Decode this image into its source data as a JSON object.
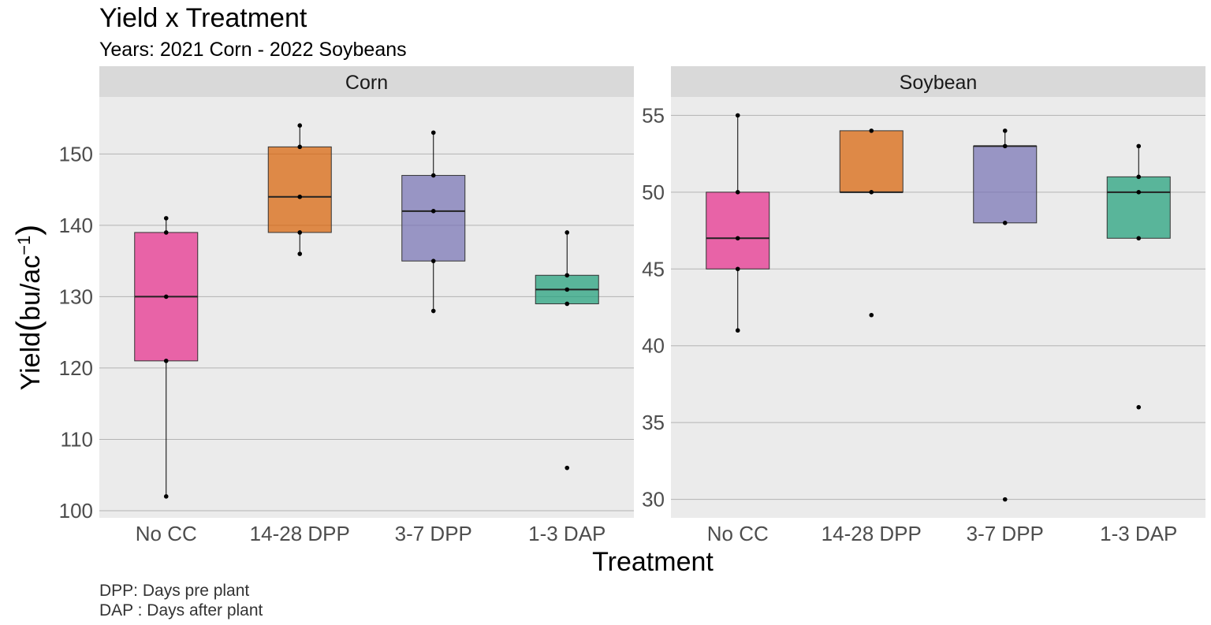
{
  "chart_data": {
    "type": "box",
    "title": "Yield x Treatment",
    "subtitle": "Years: 2021 Corn - 2022 Soybeans",
    "xlabel": "Treatment",
    "ylabel": {
      "main": "Yield",
      "unit_numer": "bu",
      "unit_denom": "ac",
      "exponent": "−1"
    },
    "caption": [
      "DPP: Days pre plant",
      "DAP : Days after plant"
    ],
    "categories": [
      "No CC",
      "14-28 DPP",
      "3-7 DPP",
      "1-3 DAP"
    ],
    "colors": [
      "#e7298a",
      "#d95f02",
      "#7570b3",
      "#1b9e77"
    ],
    "grid": true,
    "legend": "none",
    "panels": [
      {
        "name": "Corn",
        "ylim": [
          99,
          158
        ],
        "yticks": [
          100,
          110,
          120,
          130,
          140,
          150
        ],
        "boxes": [
          {
            "q1": 121,
            "median": 130,
            "q3": 139,
            "whisker_low": 102,
            "whisker_high": 141,
            "points": [
              102,
              121,
              130,
              139,
              141
            ]
          },
          {
            "q1": 139,
            "median": 144,
            "q3": 151,
            "whisker_low": 136,
            "whisker_high": 154,
            "points": [
              136,
              139,
              144,
              151,
              154
            ]
          },
          {
            "q1": 135,
            "median": 142,
            "q3": 147,
            "whisker_low": 128,
            "whisker_high": 153,
            "points": [
              128,
              135,
              142,
              147,
              153
            ]
          },
          {
            "q1": 129,
            "median": 131,
            "q3": 133,
            "whisker_low": 129,
            "whisker_high": 139,
            "points": [
              106,
              129,
              131,
              133,
              139
            ]
          }
        ]
      },
      {
        "name": "Soybean",
        "ylim": [
          28.8,
          56.2
        ],
        "yticks": [
          30,
          35,
          40,
          45,
          50,
          55
        ],
        "boxes": [
          {
            "q1": 45,
            "median": 47,
            "q3": 50,
            "whisker_low": 41,
            "whisker_high": 55,
            "points": [
              41,
              45,
              47,
              50,
              55
            ]
          },
          {
            "q1": 50,
            "median": 50,
            "q3": 54,
            "whisker_low": 50,
            "whisker_high": 54,
            "points": [
              42,
              50,
              54
            ]
          },
          {
            "q1": 48,
            "median": 53,
            "q3": 53,
            "whisker_low": 48,
            "whisker_high": 54,
            "points": [
              30,
              48,
              53,
              54
            ]
          },
          {
            "q1": 47,
            "median": 50,
            "q3": 51,
            "whisker_low": 47,
            "whisker_high": 53,
            "points": [
              36,
              47,
              50,
              51,
              53
            ]
          }
        ]
      }
    ]
  }
}
